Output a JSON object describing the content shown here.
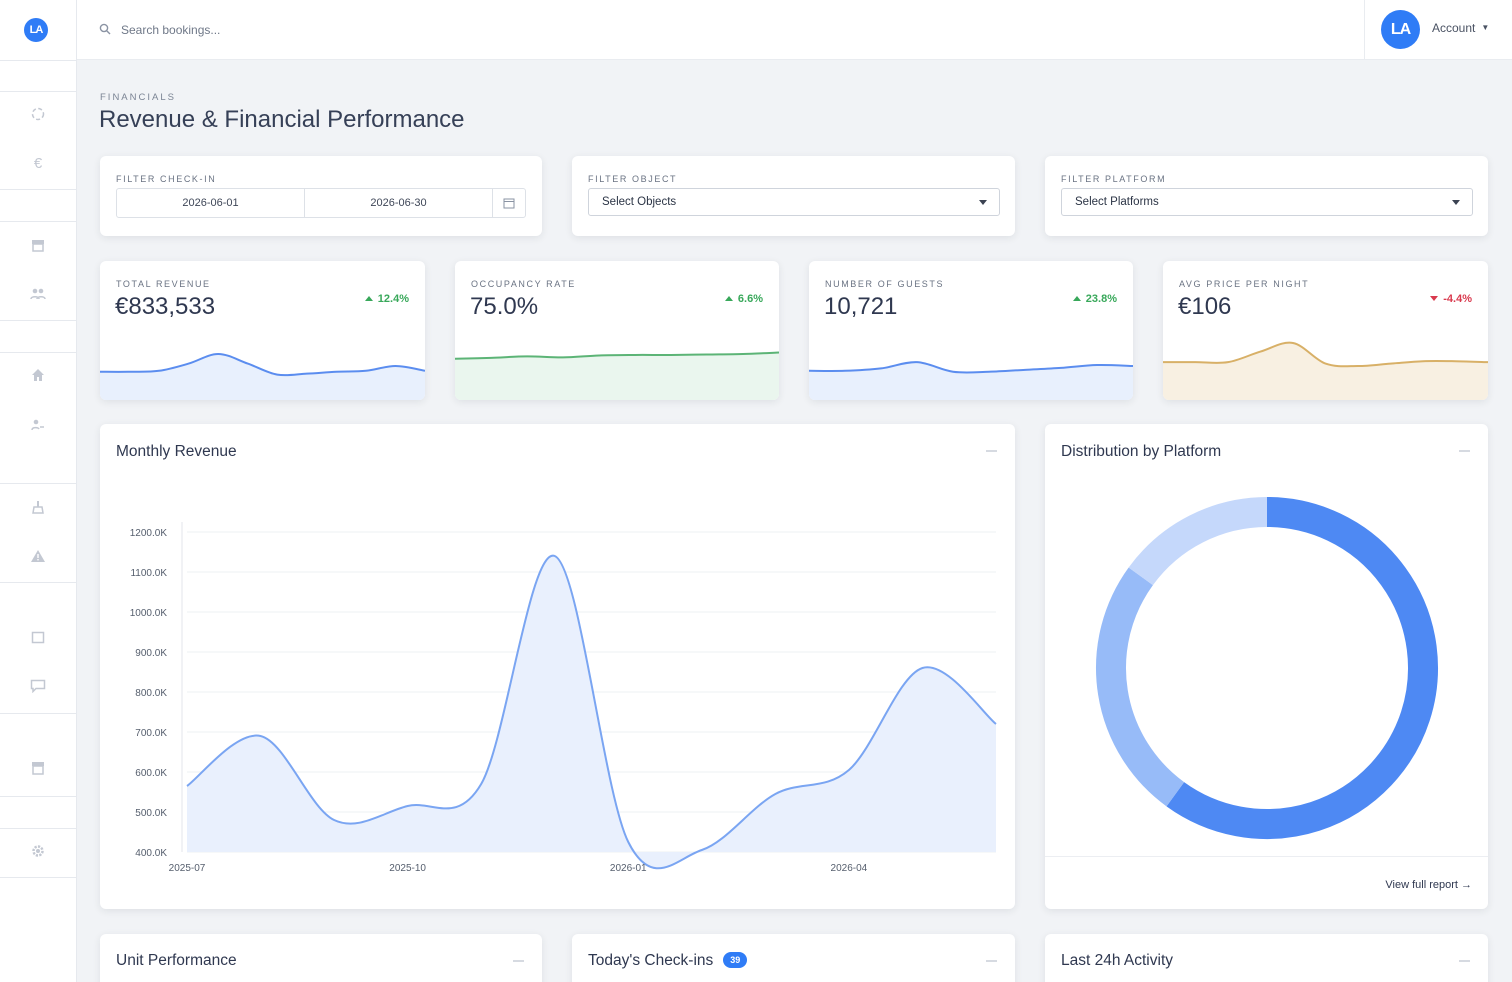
{
  "app": {
    "logo_text": "LA",
    "avatar_text": "LA",
    "account_label": "Account"
  },
  "search": {
    "placeholder": "Search bookings..."
  },
  "sidebar": {
    "icons": [
      "loader-icon",
      "euro-icon",
      "store-icon",
      "users-icon",
      "home-icon",
      "user-key-icon",
      "cleaning-icon",
      "warning-icon",
      "message-square-icon",
      "chat-icon",
      "archive-icon",
      "settings-icon"
    ]
  },
  "page": {
    "eyebrow": "FINANCIALS",
    "title": "Revenue & Financial Performance"
  },
  "filters": {
    "checkin": {
      "label": "FILTER CHECK-IN",
      "from": "2026-06-01",
      "to": "2026-06-30"
    },
    "object": {
      "label": "FILTER OBJECT",
      "value": "Select Objects"
    },
    "platform": {
      "label": "FILTER PLATFORM",
      "value": "Select Platforms"
    }
  },
  "kpis": [
    {
      "label": "TOTAL REVENUE",
      "value": "€833,533",
      "change": "12.4%",
      "direction": "up",
      "color": "#5b8def",
      "fill": "#e8f0fd"
    },
    {
      "label": "OCCUPANCY RATE",
      "value": "75.0%",
      "change": "6.6%",
      "direction": "up",
      "color": "#5cb476",
      "fill": "#eaf6ee"
    },
    {
      "label": "NUMBER OF GUESTS",
      "value": "10,721",
      "change": "23.8%",
      "direction": "up",
      "color": "#5b8def",
      "fill": "#e8f0fd"
    },
    {
      "label": "AVG PRICE PER NIGHT",
      "value": "€106",
      "change": "-4.4%",
      "direction": "down",
      "color": "#d8b067",
      "fill": "#f8f0e2"
    }
  ],
  "monthly_revenue": {
    "title": "Monthly Revenue"
  },
  "distribution": {
    "title": "Distribution by Platform",
    "link": "View full report →"
  },
  "bottom_cards": {
    "unit_performance": "Unit Performance",
    "todays_checkins": "Today's Check-ins",
    "checkins_count": "39",
    "last_activity": "Last 24h Activity"
  },
  "chart_data": [
    {
      "type": "area",
      "title": "Monthly Revenue",
      "x": [
        "2025-07",
        "2025-08",
        "2025-09",
        "2025-10",
        "2025-11",
        "2025-12",
        "2026-01",
        "2026-02",
        "2026-03",
        "2026-04",
        "2026-05",
        "2026-06"
      ],
      "xticks": [
        "2025-07",
        "2025-10",
        "2026-01",
        "2026-04"
      ],
      "values": [
        565.0,
        690.0,
        480.0,
        515.0,
        570.0,
        1140.0,
        425.0,
        405.0,
        545.0,
        605.0,
        860.0,
        720.0
      ],
      "ylim": [
        400.0,
        1200.0
      ],
      "yticks": [
        "400.0K",
        "500.0K",
        "600.0K",
        "700.0K",
        "800.0K",
        "900.0K",
        "1000.0K",
        "1100.0K",
        "1200.0K"
      ],
      "color": "#7aa5f2",
      "fill": "#e9f0fd",
      "grid": true
    },
    {
      "type": "pie",
      "title": "Distribution by Platform",
      "donut": true,
      "values": [
        60,
        25,
        15
      ],
      "colors": [
        "#4e89f3",
        "#97bbf8",
        "#c5d8fb"
      ]
    }
  ]
}
